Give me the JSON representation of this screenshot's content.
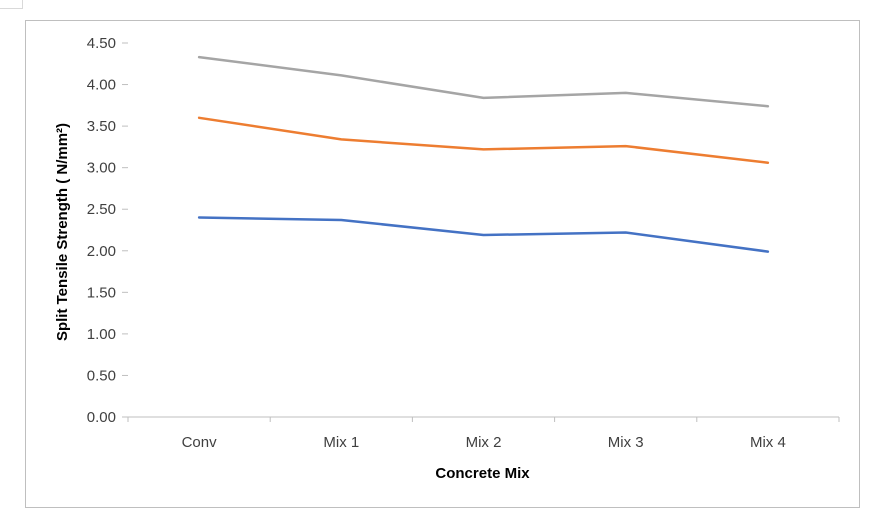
{
  "chart_data": {
    "type": "line",
    "title": "",
    "xlabel": "Concrete Mix",
    "ylabel": "Split Tensile Strength ( N/mm²)",
    "categories": [
      "Conv",
      "Mix 1",
      "Mix 2",
      "Mix 3",
      "Mix 4"
    ],
    "ylim": [
      0,
      4.5
    ],
    "yticks": [
      "0.00",
      "0.50",
      "1.00",
      "1.50",
      "2.00",
      "2.50",
      "3.00",
      "3.50",
      "4.00",
      "4.50"
    ],
    "grid": false,
    "legend": "none",
    "series": [
      {
        "values": [
          2.4,
          2.37,
          2.19,
          2.22,
          1.99
        ],
        "color": "#4472c4"
      },
      {
        "values": [
          3.6,
          3.34,
          3.22,
          3.26,
          3.06
        ],
        "color": "#ed7d31"
      },
      {
        "values": [
          4.33,
          4.11,
          3.84,
          3.9,
          3.74
        ],
        "color": "#a5a5a5"
      }
    ]
  }
}
